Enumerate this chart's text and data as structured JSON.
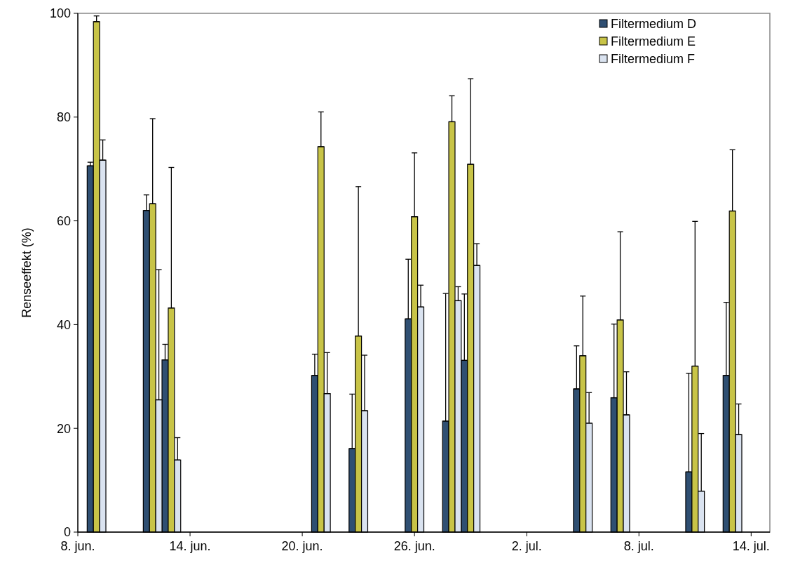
{
  "chart_data": {
    "type": "bar",
    "ylabel": "Renseeffekt (%)",
    "x": [
      "--06-09",
      "--06-12",
      "--06-13",
      "--06-21",
      "--06-23",
      "--06-26",
      "--06-28",
      "--06-29",
      "--07-05",
      "--07-07",
      "--07-11",
      "--07-13"
    ],
    "series": [
      {
        "name": "Filtermedium D",
        "color": "#2f4f72",
        "values": [
          70.6,
          62.0,
          33.2,
          30.2,
          16.1,
          41.1,
          21.4,
          33.1,
          27.6,
          25.9,
          11.6,
          30.2
        ],
        "errors": [
          [
            70.6,
            71.3
          ],
          [
            62.0,
            65.0
          ],
          [
            33.2,
            36.2
          ],
          [
            30.2,
            34.3
          ],
          [
            16.1,
            26.6
          ],
          [
            41.1,
            52.6
          ],
          [
            21.4,
            46.0
          ],
          [
            33.1,
            45.9
          ],
          [
            27.6,
            35.9
          ],
          [
            25.9,
            40.1
          ],
          [
            11.6,
            30.6
          ],
          [
            30.2,
            44.3
          ]
        ]
      },
      {
        "name": "Filtermedium E",
        "color": "#c8c447",
        "values": [
          98.4,
          63.3,
          43.2,
          74.3,
          37.8,
          60.8,
          79.1,
          70.9,
          34.0,
          40.9,
          32.0,
          61.9
        ],
        "errors": [
          [
            98.4,
            99.5
          ],
          [
            63.3,
            79.7
          ],
          [
            43.2,
            70.3
          ],
          [
            74.3,
            81.0
          ],
          [
            37.8,
            66.6
          ],
          [
            60.8,
            73.1
          ],
          [
            79.1,
            84.1
          ],
          [
            70.9,
            87.4
          ],
          [
            34.0,
            45.5
          ],
          [
            40.9,
            57.9
          ],
          [
            32.0,
            59.9
          ],
          [
            61.9,
            73.7
          ]
        ]
      },
      {
        "name": "Filtermedium F",
        "color": "#dae3f0",
        "values": [
          71.7,
          25.5,
          13.9,
          26.7,
          23.4,
          43.4,
          44.6,
          51.4,
          21.0,
          22.6,
          7.9,
          18.8
        ],
        "errors": [
          [
            71.7,
            75.6
          ],
          [
            25.5,
            50.6
          ],
          [
            13.9,
            18.2
          ],
          [
            26.7,
            34.6
          ],
          [
            23.4,
            34.1
          ],
          [
            43.4,
            47.6
          ],
          [
            44.6,
            47.3
          ],
          [
            51.4,
            55.6
          ],
          [
            21.0,
            26.9
          ],
          [
            22.6,
            30.9
          ],
          [
            7.9,
            19.0
          ],
          [
            18.8,
            24.7
          ]
        ]
      }
    ],
    "xlim": [
      "--06-08",
      "--07-15"
    ],
    "xticks": [
      {
        "value": "--06-08",
        "label": "8. jun."
      },
      {
        "value": "--06-14",
        "label": "14. jun."
      },
      {
        "value": "--06-20",
        "label": "20. jun."
      },
      {
        "value": "--06-26",
        "label": "26. jun."
      },
      {
        "value": "--07-02",
        "label": "2. jul."
      },
      {
        "value": "--07-08",
        "label": "8. jul."
      },
      {
        "value": "--07-14",
        "label": "14. jul."
      }
    ],
    "ylim": [
      0,
      100
    ],
    "yticks": [
      0,
      20,
      40,
      60,
      80,
      100
    ],
    "grid": false,
    "legend": "top right"
  }
}
